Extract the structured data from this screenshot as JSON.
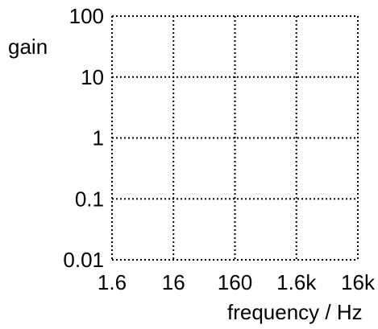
{
  "chart_data": {
    "type": "line",
    "title": "",
    "xlabel": "frequency / Hz",
    "ylabel": "gain",
    "x_scale": "log",
    "y_scale": "log",
    "x_ticks": [
      1.6,
      16,
      160,
      1600,
      16000
    ],
    "x_tick_labels": [
      "1.6",
      "16",
      "160",
      "1.6k",
      "16k"
    ],
    "y_ticks": [
      0.01,
      0.1,
      1,
      10,
      100
    ],
    "y_tick_labels": [
      "0.01",
      "0.1",
      "1",
      "10",
      "100"
    ],
    "xlim": [
      1.6,
      16000
    ],
    "ylim": [
      0.01,
      100
    ],
    "grid": true,
    "grid_style": "dotted",
    "series": []
  }
}
